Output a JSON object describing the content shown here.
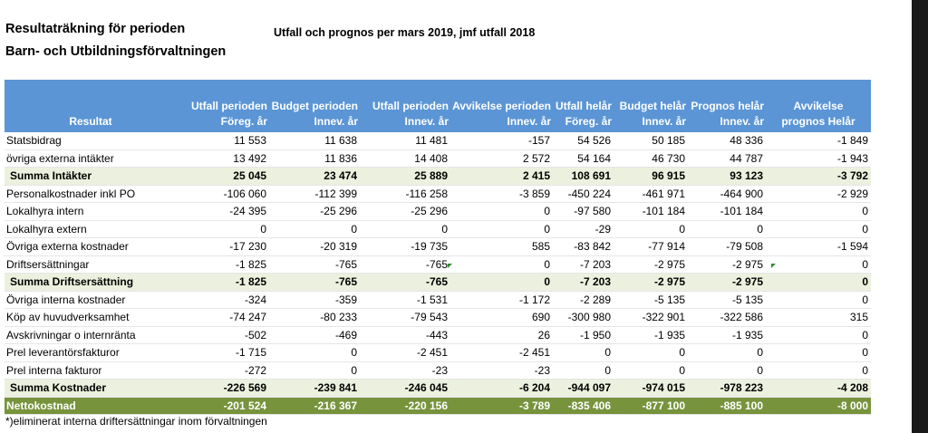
{
  "header": {
    "title_line1": "Resultaträkning för perioden",
    "title_line2": "Barn- och Utbildningsförvaltningen",
    "subtitle": "Utfall och prognos per mars 2019, jmf utfall 2018"
  },
  "table": {
    "columns": [
      {
        "key": "label",
        "lines": [
          "Resultat"
        ]
      },
      {
        "key": "c1",
        "lines": [
          "Utfall perioden",
          "Föreg. år"
        ]
      },
      {
        "key": "c2",
        "lines": [
          "Budget perioden",
          "Innev. år"
        ]
      },
      {
        "key": "c3",
        "lines": [
          "Utfall perioden",
          "Innev. år"
        ]
      },
      {
        "key": "c4",
        "lines": [
          "Avvikelse perioden",
          "Innev. år"
        ]
      },
      {
        "key": "c5",
        "lines": [
          "Utfall helår",
          "Föreg. år"
        ]
      },
      {
        "key": "c6",
        "lines": [
          "Budget helår",
          "Innev. år"
        ]
      },
      {
        "key": "c7",
        "lines": [
          "Prognos helår",
          "Innev. år"
        ]
      },
      {
        "key": "c8",
        "lines": [
          "Avvikelse",
          "prognos  Helår"
        ]
      }
    ],
    "rows": [
      {
        "type": "normal",
        "label": "Statsbidrag",
        "values": [
          "11 553",
          "11 638",
          "11 481",
          "-157",
          "54 526",
          "50 185",
          "48 336",
          "-1 849"
        ]
      },
      {
        "type": "normal",
        "label": "övriga externa intäkter",
        "values": [
          "13 492",
          "11 836",
          "14 408",
          "2 572",
          "54 164",
          "46 730",
          "44 787",
          "-1 943"
        ]
      },
      {
        "type": "sum",
        "label": "Summa Intäkter",
        "values": [
          "25 045",
          "23 474",
          "25 889",
          "2 415",
          "108 691",
          "96 915",
          "93 123",
          "-3 792"
        ]
      },
      {
        "type": "normal",
        "label": "Personalkostnader inkl PO",
        "values": [
          "-106 060",
          "-112 399",
          "-116 258",
          "-3 859",
          "-450 224",
          "-461 971",
          "-464 900",
          "-2 929"
        ]
      },
      {
        "type": "normal",
        "label": "Lokalhyra intern",
        "values": [
          "-24 395",
          "-25 296",
          "-25 296",
          "0",
          "-97 580",
          "-101 184",
          "-101 184",
          "0"
        ]
      },
      {
        "type": "normal",
        "label": "Lokalhyra extern",
        "values": [
          "0",
          "0",
          "0",
          "0",
          "-29",
          "0",
          "0",
          "0"
        ]
      },
      {
        "type": "normal",
        "label": "Övriga externa kostnader",
        "values": [
          "-17 230",
          "-20 319",
          "-19 735",
          "585",
          "-83 842",
          "-77 914",
          "-79 508",
          "-1 594"
        ]
      },
      {
        "type": "normal",
        "label": "Driftsersättningar",
        "values": [
          "-1 825",
          "-765",
          "-765",
          "0",
          "-7 203",
          "-2 975",
          "-2 975",
          "0"
        ]
      },
      {
        "type": "sum",
        "label": "Summa Driftsersättning",
        "values": [
          "-1 825",
          "-765",
          "-765",
          "0",
          "-7 203",
          "-2 975",
          "-2 975",
          "0"
        ]
      },
      {
        "type": "normal",
        "label": "Övriga interna kostnader",
        "values": [
          "-324",
          "-359",
          "-1 531",
          "-1 172",
          "-2 289",
          "-5 135",
          "-5 135",
          "0"
        ]
      },
      {
        "type": "normal",
        "label": "Köp av huvudverksamhet",
        "values": [
          "-74 247",
          "-80 233",
          "-79 543",
          "690",
          "-300 980",
          "-322 901",
          "-322 586",
          "315"
        ]
      },
      {
        "type": "normal",
        "label": "Avskrivningar o internränta",
        "values": [
          "-502",
          "-469",
          "-443",
          "26",
          "-1 950",
          "-1 935",
          "-1 935",
          "0"
        ]
      },
      {
        "type": "normal",
        "label": "Prel leverantörsfakturor",
        "values": [
          "-1 715",
          "0",
          "-2 451",
          "-2 451",
          "0",
          "0",
          "0",
          "0"
        ]
      },
      {
        "type": "normal",
        "label": "Prel interna fakturor",
        "values": [
          "-272",
          "0",
          "-23",
          "-23",
          "0",
          "0",
          "0",
          "0"
        ]
      },
      {
        "type": "sum",
        "label": "Summa Kostnader",
        "values": [
          "-226 569",
          "-239 841",
          "-246 045",
          "-6 204",
          "-944 097",
          "-974 015",
          "-978 223",
          "-4 208"
        ]
      },
      {
        "type": "net",
        "label": "Nettokostnad",
        "values": [
          "-201 524",
          "-216 367",
          "-220 156",
          "-3 789",
          "-835 406",
          "-877 100",
          "-885 100",
          "-8 000"
        ]
      }
    ]
  },
  "footnote": "*)eliminerat interna driftersättningar inom förvaltningen",
  "colors": {
    "header_bg": "#5b95d5",
    "sum_row_bg": "#ebf1de",
    "net_row_bg": "#77933c"
  }
}
